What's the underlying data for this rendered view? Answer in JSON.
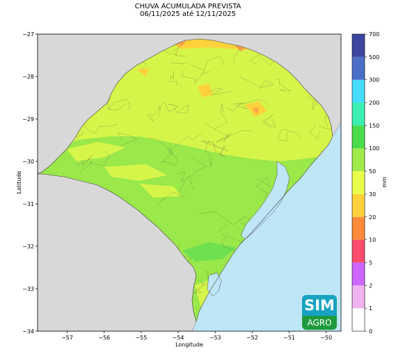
{
  "title": {
    "line1": "CHUVA ACUMULADA PREVISTA",
    "line2": "06/11/2025 até 12/11/2025"
  },
  "axes": {
    "xlabel": "Longitude",
    "ylabel": "Latitude",
    "x_ticks": [
      -57,
      -56,
      -55,
      -54,
      -53,
      -52,
      -51,
      -50
    ],
    "y_ticks": [
      -27,
      -28,
      -29,
      -30,
      -31,
      -32,
      -33,
      -34
    ],
    "xlim": [
      -57.8,
      -49.6
    ],
    "ylim": [
      -34,
      -27
    ]
  },
  "colorbar": {
    "unit": "mm",
    "levels": [
      0,
      1,
      2,
      5,
      10,
      20,
      30,
      50,
      100,
      150,
      200,
      300,
      500,
      700
    ],
    "colors": [
      "#ffffff",
      "#f0b4f0",
      "#cc66ff",
      "#ff4d6e",
      "#ff8c3c",
      "#ffd23c",
      "#eaff4a",
      "#a0ea4a",
      "#4adc4a",
      "#3cf0b4",
      "#46dcff",
      "#4b6ec8",
      "#3c46a0"
    ]
  },
  "map_colors": {
    "ocean": "#bfe6f7",
    "neighbor_land": "#d8d8d8",
    "lagoon": "#bfe6f7",
    "rain_30_50": "#d6f54a",
    "rain_20_30": "#ffd23c",
    "rain_10_20": "#ffa646",
    "rain_50_100": "#9ae84a",
    "rain_100_150": "#6fe050"
  },
  "logo": {
    "top": "SIM",
    "bottom": "AGRO"
  }
}
